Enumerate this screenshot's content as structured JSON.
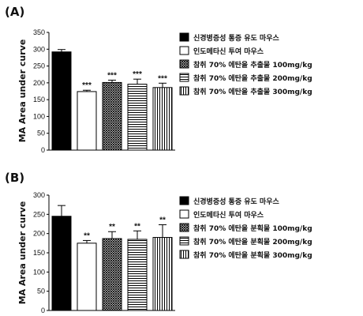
{
  "chart_data": [
    {
      "panel": "(A)",
      "type": "bar",
      "ylabel": "MA Area under curve",
      "ylim": [
        0,
        350
      ],
      "yticks": [
        0,
        50,
        100,
        150,
        200,
        250,
        300,
        350
      ],
      "series": [
        {
          "name": "신경병증성 통증 유도 마우스",
          "value": 292,
          "error": 7,
          "sig": "",
          "pattern": "solid",
          "color": "#000000"
        },
        {
          "name": "인도메타신 투여 마우스",
          "value": 174,
          "error": 4,
          "sig": "***",
          "pattern": "white",
          "color": "#ffffff"
        },
        {
          "name": "참취 70% 에탄올 추출물 100mg/kg",
          "value": 201,
          "error": 7,
          "sig": "***",
          "pattern": "crosshatch",
          "color": "#000000"
        },
        {
          "name": "참취 70% 에탄올 추출물 200mg/kg",
          "value": 196,
          "error": 15,
          "sig": "***",
          "pattern": "hlines",
          "color": "#000000"
        },
        {
          "name": "참취 70% 에탄올 추출물 300mg/kg",
          "value": 186,
          "error": 13,
          "sig": "***",
          "pattern": "vlines",
          "color": "#000000"
        }
      ]
    },
    {
      "panel": "(B)",
      "type": "bar",
      "ylabel": "MA Area under curve",
      "ylim": [
        0,
        300
      ],
      "yticks": [
        0,
        50,
        100,
        150,
        200,
        250,
        300
      ],
      "series": [
        {
          "name": "신경병증성 통증 유도 마우스",
          "value": 245,
          "error": 28,
          "sig": "",
          "pattern": "solid",
          "color": "#000000"
        },
        {
          "name": "인도메타신 투여 마우스",
          "value": 175,
          "error": 7,
          "sig": "**",
          "pattern": "white",
          "color": "#ffffff"
        },
        {
          "name": "참취 70% 에탄올 분획물 100mg/kg",
          "value": 187,
          "error": 18,
          "sig": "**",
          "pattern": "crosshatch",
          "color": "#000000"
        },
        {
          "name": "참취 70% 에탄올 분획물 200mg/kg",
          "value": 185,
          "error": 22,
          "sig": "**",
          "pattern": "hlines",
          "color": "#000000"
        },
        {
          "name": "참취 70% 에탄올 분획물 300mg/kg",
          "value": 190,
          "error": 33,
          "sig": "**",
          "pattern": "vlines",
          "color": "#000000"
        }
      ]
    }
  ]
}
